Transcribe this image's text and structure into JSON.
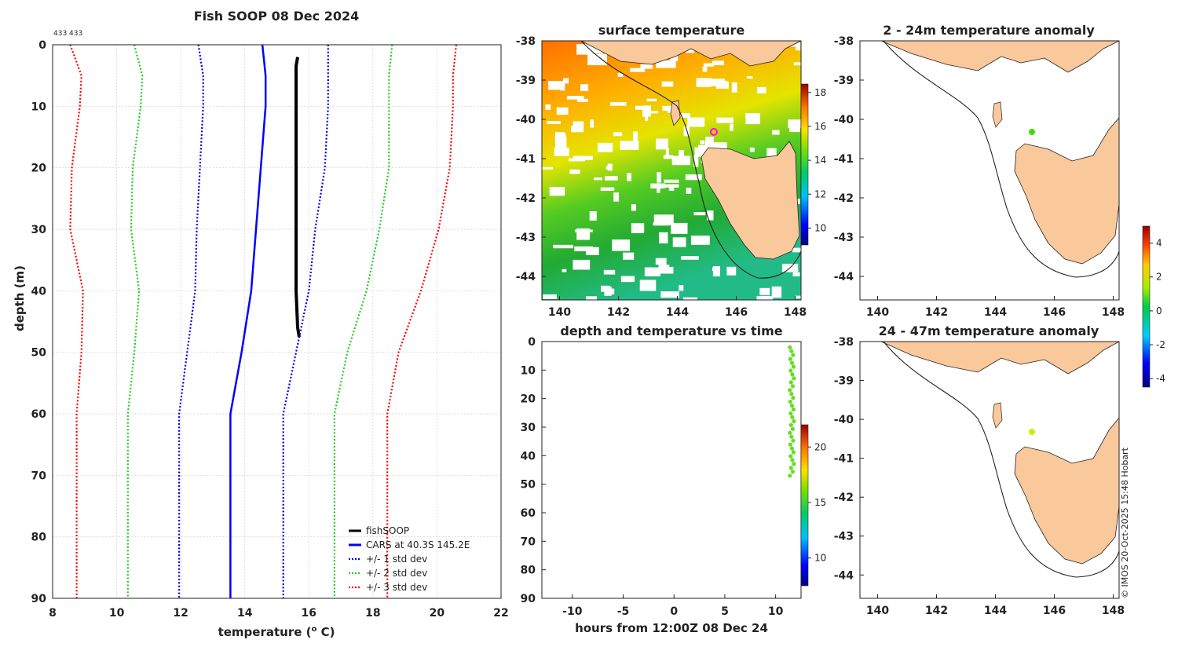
{
  "page": {
    "title": "Fish SOOP 08 Dec 2024",
    "corner_text": "433 433",
    "watermark": "© IMOS 20-Oct-2025 15:48 Hobart"
  },
  "colors": {
    "observed": "#000000",
    "cars": "#0000ff",
    "std1": "#0000e0",
    "std2": "#22cc22",
    "std3": "#ff0000",
    "land": "#f9c89b",
    "grid": "#c8c8c8"
  },
  "chart_data": [
    {
      "type": "line",
      "title": "Fish SOOP 08 Dec 2024",
      "xlabel_pre": "temperature (",
      "xlabel_sup": "o",
      "xlabel_post": " C)",
      "ylabel": "depth (m)",
      "xlim": [
        8,
        22
      ],
      "ylim": [
        0,
        90
      ],
      "y_reversed": true,
      "grid": true,
      "legend_position": "bottom-right",
      "xticks": [
        8,
        10,
        12,
        14,
        16,
        18,
        20,
        22
      ],
      "yticks": [
        0,
        10,
        20,
        30,
        40,
        50,
        60,
        70,
        80,
        90
      ],
      "series": [
        {
          "name": "fishSOOP",
          "style": "solid-thick",
          "color": "#000000",
          "points": [
            [
              15.65,
              2
            ],
            [
              15.6,
              3.5
            ],
            [
              15.6,
              10
            ],
            [
              15.6,
              20
            ],
            [
              15.6,
              30
            ],
            [
              15.6,
              40
            ],
            [
              15.65,
              46
            ],
            [
              15.7,
              47.5
            ]
          ]
        },
        {
          "name": "CARS at 40.3S 145.2E",
          "style": "solid",
          "color": "#0000ff",
          "points": [
            [
              14.55,
              0
            ],
            [
              14.65,
              5
            ],
            [
              14.65,
              10
            ],
            [
              14.5,
              20
            ],
            [
              14.35,
              30
            ],
            [
              14.2,
              40
            ],
            [
              13.9,
              50
            ],
            [
              13.55,
              60
            ],
            [
              13.55,
              70
            ],
            [
              13.55,
              80
            ],
            [
              13.55,
              90
            ]
          ]
        },
        {
          "name": "+/- 1 std dev",
          "style": "dotted",
          "color": "#0000e0",
          "points": [
            [
              12.55,
              0
            ],
            [
              12.7,
              5
            ],
            [
              12.7,
              10
            ],
            [
              12.6,
              20
            ],
            [
              12.5,
              30
            ],
            [
              12.45,
              40
            ],
            [
              12.2,
              50
            ],
            [
              11.95,
              60
            ],
            [
              11.95,
              70
            ],
            [
              11.95,
              80
            ],
            [
              11.95,
              90
            ]
          ]
        },
        {
          "name": "",
          "style": "dotted",
          "color": "#0000e0",
          "points": [
            [
              16.6,
              0
            ],
            [
              16.6,
              5
            ],
            [
              16.6,
              10
            ],
            [
              16.5,
              20
            ],
            [
              16.2,
              30
            ],
            [
              16.0,
              40
            ],
            [
              15.6,
              50
            ],
            [
              15.2,
              60
            ],
            [
              15.2,
              70
            ],
            [
              15.2,
              80
            ],
            [
              15.2,
              90
            ]
          ]
        },
        {
          "name": "+/- 2 std dev",
          "style": "dotted",
          "color": "#22cc22",
          "points": [
            [
              10.55,
              0
            ],
            [
              10.8,
              5
            ],
            [
              10.75,
              10
            ],
            [
              10.5,
              20
            ],
            [
              10.45,
              30
            ],
            [
              10.7,
              40
            ],
            [
              10.55,
              50
            ],
            [
              10.35,
              60
            ],
            [
              10.35,
              70
            ],
            [
              10.35,
              80
            ],
            [
              10.35,
              90
            ]
          ]
        },
        {
          "name": "",
          "style": "dotted",
          "color": "#22cc22",
          "points": [
            [
              18.6,
              0
            ],
            [
              18.5,
              5
            ],
            [
              18.5,
              10
            ],
            [
              18.5,
              20
            ],
            [
              18.2,
              30
            ],
            [
              17.8,
              40
            ],
            [
              17.2,
              50
            ],
            [
              16.8,
              60
            ],
            [
              16.8,
              70
            ],
            [
              16.8,
              80
            ],
            [
              16.8,
              90
            ]
          ]
        },
        {
          "name": "+/- 3 std dev",
          "style": "dotted",
          "color": "#ff0000",
          "points": [
            [
              8.55,
              0
            ],
            [
              8.9,
              5
            ],
            [
              8.85,
              10
            ],
            [
              8.6,
              20
            ],
            [
              8.55,
              30
            ],
            [
              8.95,
              40
            ],
            [
              8.9,
              50
            ],
            [
              8.75,
              60
            ],
            [
              8.75,
              70
            ],
            [
              8.75,
              80
            ],
            [
              8.75,
              90
            ]
          ]
        },
        {
          "name": "",
          "style": "dotted",
          "color": "#ff0000",
          "points": [
            [
              20.6,
              0
            ],
            [
              20.5,
              5
            ],
            [
              20.5,
              10
            ],
            [
              20.4,
              20
            ],
            [
              20.05,
              30
            ],
            [
              19.5,
              40
            ],
            [
              18.8,
              50
            ],
            [
              18.45,
              60
            ],
            [
              18.45,
              70
            ],
            [
              18.45,
              80
            ],
            [
              18.45,
              90
            ]
          ]
        }
      ]
    },
    {
      "type": "heatmap",
      "title": "surface temperature",
      "xlim": [
        139.4,
        148.2
      ],
      "ylim": [
        -44.6,
        -38
      ],
      "xticks": [
        140,
        142,
        144,
        146,
        148
      ],
      "yticks": [
        -38,
        -39,
        -40,
        -41,
        -42,
        -43,
        -44
      ],
      "colorbar_ticks": [
        10,
        12,
        14,
        16,
        18
      ],
      "colorbar_range": [
        9,
        18.5
      ],
      "marker": {
        "lon": 145.2,
        "lat": -40.3,
        "color": "#ff00ff"
      }
    },
    {
      "type": "scatter",
      "title": "depth and temperature vs time",
      "xlabel": "hours from 12:00Z 08 Dec 24",
      "xlim": [
        -13,
        12.5
      ],
      "ylim": [
        0,
        90
      ],
      "y_reversed": true,
      "xticks": [
        -10,
        -5,
        0,
        5,
        10
      ],
      "yticks": [
        0,
        10,
        20,
        30,
        40,
        50,
        60,
        70,
        80,
        90
      ],
      "colorbar_ticks": [
        10,
        15,
        20
      ],
      "colorbar_range": [
        7.5,
        22
      ],
      "points_summary": {
        "hours_from": 11.4,
        "hours_to": 11.8,
        "depth_from": 2,
        "depth_to": 47,
        "temperature": 15.6
      }
    },
    {
      "type": "map",
      "title": "2 - 24m temperature anomaly",
      "xlim": [
        139.4,
        148.2
      ],
      "ylim": [
        -44.6,
        -38
      ],
      "xticks": [
        140,
        142,
        144,
        146,
        148
      ],
      "yticks": [
        -38,
        -39,
        -40,
        -41,
        -42,
        -43,
        -44
      ],
      "marker": {
        "lon": 145.2,
        "lat": -40.3,
        "value": 1.0
      }
    },
    {
      "type": "map",
      "title": "24 - 47m temperature anomaly",
      "xlim": [
        139.4,
        148.2
      ],
      "ylim": [
        -44.6,
        -38
      ],
      "xticks": [
        140,
        142,
        144,
        146,
        148
      ],
      "yticks": [
        -38,
        -39,
        -40,
        -41,
        -42,
        -43,
        -44
      ],
      "marker": {
        "lon": 145.2,
        "lat": -40.3,
        "value": 1.5
      },
      "colorbar_ticks": [
        -4,
        -2,
        0,
        2,
        4
      ],
      "colorbar_range": [
        -4.5,
        5
      ]
    }
  ]
}
